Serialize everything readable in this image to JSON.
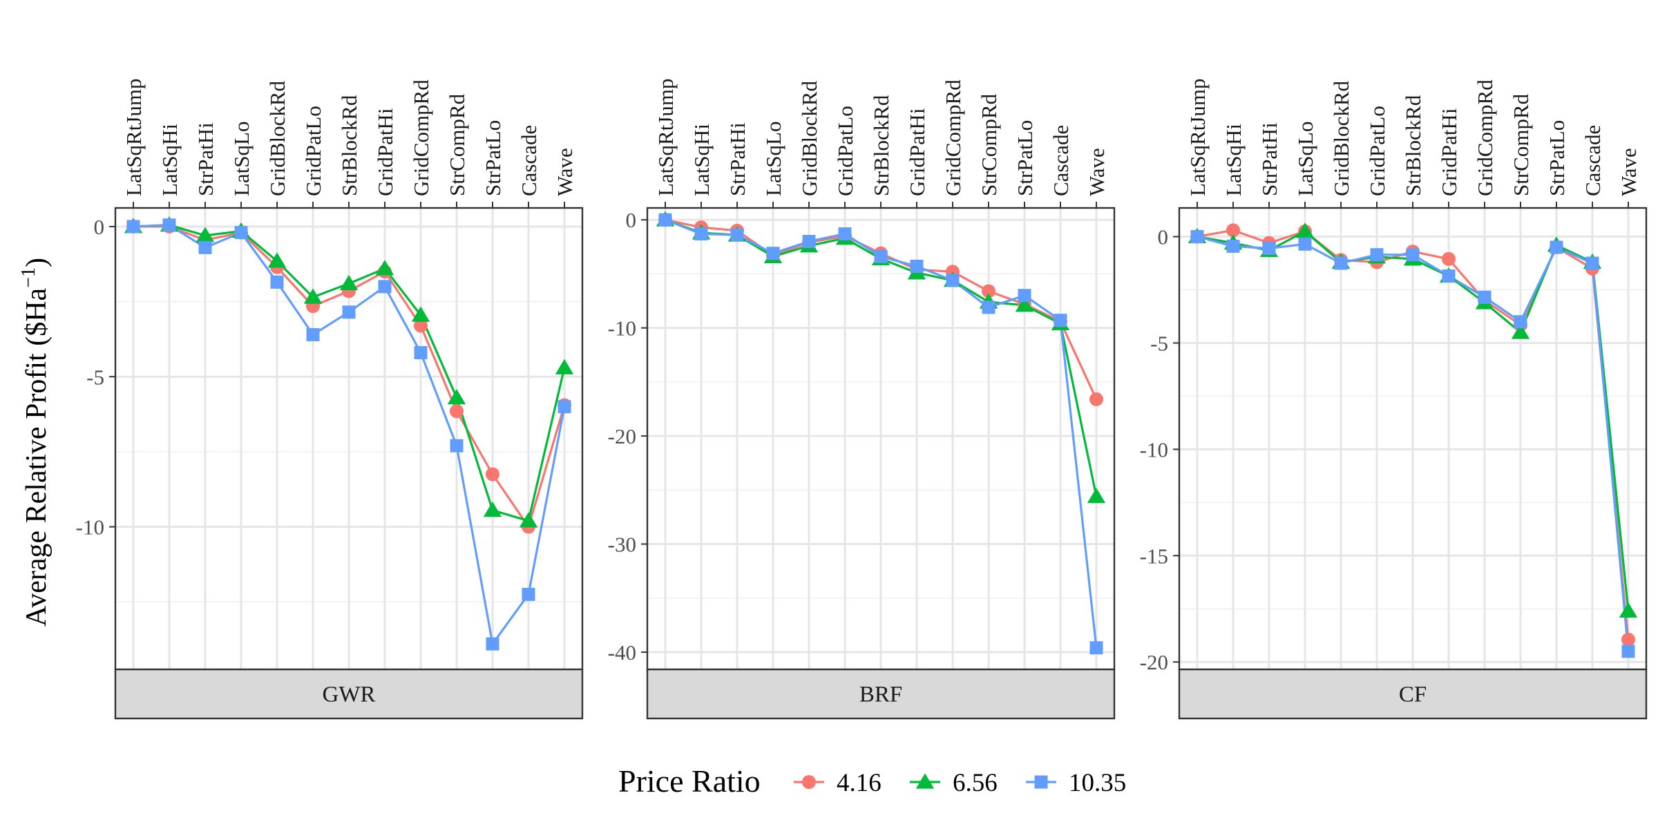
{
  "chart_data": {
    "type": "line",
    "ylabel": "Average Relative Profit ($Ha",
    "ylabel_sup": "−1",
    "ylabel_close": ")",
    "legend_title": "Price Ratio",
    "legend_position": "bottom",
    "grid": true,
    "categories": [
      "LatSqRtJump",
      "LatSqHi",
      "StrPatHi",
      "LatSqLo",
      "GridBlockRd",
      "GridPatLo",
      "StrBlockRd",
      "GridPatHi",
      "GridCompRd",
      "StrCompRd",
      "StrPatLo",
      "Cascade",
      "Wave"
    ],
    "series_styles": [
      {
        "name": "4.16",
        "color": "#F8766D",
        "shape": "circle"
      },
      {
        "name": "6.56",
        "color": "#00BA38",
        "shape": "triangle"
      },
      {
        "name": "10.35",
        "color": "#619CFF",
        "shape": "square"
      }
    ],
    "panels": [
      {
        "strip": "GWR",
        "ylim": [
          -14.75,
          0.62
        ],
        "yticks": [
          0,
          -5,
          -10
        ],
        "ytick_labels": [
          "0",
          "-5",
          "-10"
        ],
        "series": [
          {
            "name": "4.16",
            "values": [
              0,
              0,
              -0.45,
              -0.2,
              -1.35,
              -2.65,
              -2.15,
              -1.5,
              -3.3,
              -6.15,
              -8.25,
              -10.0,
              -5.95
            ]
          },
          {
            "name": "6.56",
            "values": [
              0,
              0.05,
              -0.3,
              -0.15,
              -1.15,
              -2.35,
              -1.9,
              -1.4,
              -2.95,
              -5.7,
              -9.45,
              -9.8,
              -4.7
            ]
          },
          {
            "name": "10.35",
            "values": [
              0,
              0.05,
              -0.7,
              -0.2,
              -1.85,
              -3.6,
              -2.85,
              -2.0,
              -4.2,
              -7.3,
              -13.9,
              -12.25,
              -6.0
            ]
          }
        ]
      },
      {
        "strip": "BRF",
        "ylim": [
          -41.6,
          1.1
        ],
        "yticks": [
          0,
          -10,
          -20,
          -30,
          -40
        ],
        "ytick_labels": [
          "0",
          "-10",
          "-20",
          "-30",
          "-40"
        ],
        "series": [
          {
            "name": "4.16",
            "values": [
              0,
              -0.7,
              -1.0,
              -3.3,
              -2.1,
              -1.5,
              -3.1,
              -4.6,
              -4.8,
              -6.6,
              -7.8,
              -9.4,
              -16.6
            ]
          },
          {
            "name": "6.56",
            "values": [
              0,
              -1.2,
              -1.4,
              -3.4,
              -2.4,
              -1.7,
              -3.6,
              -4.9,
              -5.6,
              -7.6,
              -7.9,
              -9.6,
              -25.6
            ]
          },
          {
            "name": "10.35",
            "values": [
              0,
              -1.3,
              -1.4,
              -3.1,
              -2.0,
              -1.3,
              -3.4,
              -4.3,
              -5.6,
              -8.1,
              -7.0,
              -9.3,
              -39.6
            ]
          }
        ]
      },
      {
        "strip": "CF",
        "ylim": [
          -20.35,
          1.35
        ],
        "yticks": [
          0,
          -5,
          -10,
          -15,
          -20
        ],
        "ytick_labels": [
          "0",
          "-5",
          "-10",
          "-15",
          "-20"
        ],
        "series": [
          {
            "name": "4.16",
            "values": [
              0,
              0.3,
              -0.3,
              0.25,
              -1.1,
              -1.2,
              -0.7,
              -1.05,
              -3.0,
              -4.15,
              -0.5,
              -1.5,
              -18.95
            ]
          },
          {
            "name": "6.56",
            "values": [
              0,
              -0.3,
              -0.65,
              0.25,
              -1.2,
              -0.95,
              -1.05,
              -1.85,
              -3.1,
              -4.5,
              -0.4,
              -1.2,
              -17.6
            ]
          },
          {
            "name": "10.35",
            "values": [
              0,
              -0.45,
              -0.55,
              -0.35,
              -1.25,
              -0.85,
              -0.85,
              -1.85,
              -2.85,
              -4.0,
              -0.5,
              -1.25,
              -19.5
            ]
          }
        ]
      }
    ]
  }
}
